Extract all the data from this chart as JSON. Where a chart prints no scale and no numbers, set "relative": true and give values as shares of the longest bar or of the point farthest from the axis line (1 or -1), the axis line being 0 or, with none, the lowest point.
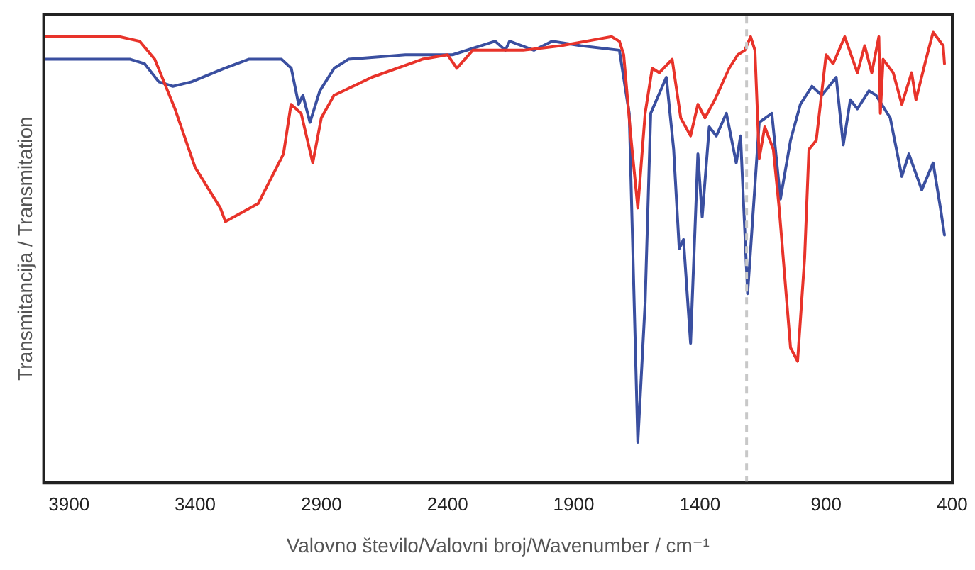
{
  "chart_data": {
    "type": "line",
    "xlabel": "Valovno število/Valovni broj/Wavenumber / cm⁻¹",
    "ylabel": "Transmitancija / Transmitation",
    "relative": true,
    "xlim": [
      4000,
      400
    ],
    "xticks": [
      3900,
      3400,
      2900,
      2400,
      1900,
      1400,
      900,
      400
    ],
    "grid": false,
    "legend": false,
    "marker": "none",
    "line_style": "solid",
    "tick_labels": "x",
    "ref_lines": [
      {
        "axis": "x",
        "value": 1215,
        "color": "#c8c8c8",
        "line_style": "dashed"
      }
    ],
    "series": [
      {
        "color": "#e8332a",
        "x": [
          3996,
          3700,
          3620,
          3560,
          3480,
          3400,
          3300,
          3280,
          3150,
          3050,
          3020,
          2980,
          2934,
          2900,
          2850,
          2700,
          2500,
          2400,
          2363,
          2300,
          2100,
          1950,
          1850,
          1750,
          1719,
          1702,
          1674,
          1646,
          1617,
          1589,
          1561,
          1510,
          1476,
          1437,
          1408,
          1380,
          1341,
          1284,
          1250,
          1222,
          1199,
          1182,
          1165,
          1143,
          1109,
          1086,
          1041,
          1013,
          985,
          968,
          939,
          900,
          872,
          826,
          776,
          747,
          719,
          691,
          685,
          674,
          634,
          600,
          561,
          544,
          504,
          476,
          436,
          431
        ],
        "values": [
          0.99,
          0.99,
          0.98,
          0.94,
          0.83,
          0.7,
          0.61,
          0.58,
          0.62,
          0.73,
          0.84,
          0.82,
          0.71,
          0.81,
          0.86,
          0.9,
          0.94,
          0.95,
          0.92,
          0.96,
          0.96,
          0.97,
          0.98,
          0.99,
          0.98,
          0.95,
          0.77,
          0.61,
          0.82,
          0.92,
          0.91,
          0.94,
          0.81,
          0.77,
          0.84,
          0.81,
          0.85,
          0.92,
          0.95,
          0.96,
          0.99,
          0.96,
          0.72,
          0.79,
          0.74,
          0.61,
          0.3,
          0.27,
          0.5,
          0.74,
          0.76,
          0.95,
          0.93,
          0.99,
          0.91,
          0.97,
          0.91,
          0.99,
          0.82,
          0.94,
          0.91,
          0.84,
          0.91,
          0.85,
          0.94,
          1.0,
          0.97,
          0.93
        ]
      },
      {
        "color": "#3a4fa0",
        "x": [
          3996,
          3657,
          3600,
          3544,
          3488,
          3414,
          3284,
          3188,
          3058,
          3019,
          2990,
          2973,
          2945,
          2906,
          2849,
          2793,
          2567,
          2380,
          2211,
          2171,
          2154,
          2058,
          1985,
          1872,
          1719,
          1680,
          1646,
          1617,
          1595,
          1533,
          1504,
          1482,
          1465,
          1437,
          1408,
          1391,
          1363,
          1335,
          1295,
          1256,
          1239,
          1211,
          1165,
          1115,
          1081,
          1041,
          1002,
          956,
          917,
          860,
          832,
          804,
          776,
          730,
          702,
          646,
          600,
          572,
          521,
          476,
          447,
          431
        ],
        "values": [
          0.94,
          0.94,
          0.93,
          0.89,
          0.88,
          0.89,
          0.92,
          0.94,
          0.94,
          0.92,
          0.84,
          0.86,
          0.8,
          0.87,
          0.92,
          0.94,
          0.95,
          0.95,
          0.98,
          0.96,
          0.98,
          0.96,
          0.98,
          0.97,
          0.96,
          0.82,
          0.09,
          0.4,
          0.82,
          0.9,
          0.74,
          0.52,
          0.54,
          0.31,
          0.73,
          0.59,
          0.79,
          0.77,
          0.82,
          0.71,
          0.77,
          0.42,
          0.8,
          0.82,
          0.63,
          0.76,
          0.84,
          0.88,
          0.86,
          0.9,
          0.75,
          0.85,
          0.83,
          0.87,
          0.86,
          0.81,
          0.68,
          0.73,
          0.65,
          0.71,
          0.61,
          0.55
        ]
      }
    ]
  }
}
